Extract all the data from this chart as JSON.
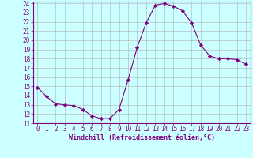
{
  "x": [
    0,
    1,
    2,
    3,
    4,
    5,
    6,
    7,
    8,
    9,
    10,
    11,
    12,
    13,
    14,
    15,
    16,
    17,
    18,
    19,
    20,
    21,
    22,
    23
  ],
  "y": [
    14.9,
    13.9,
    13.1,
    13.0,
    12.9,
    12.5,
    11.8,
    11.5,
    11.5,
    12.5,
    15.7,
    19.2,
    21.9,
    23.8,
    24.0,
    23.7,
    23.2,
    21.9,
    19.5,
    18.3,
    18.0,
    18.0,
    17.9,
    17.4
  ],
  "line_color": "#800080",
  "marker": "D",
  "marker_size": 2.2,
  "bg_color": "#ccffff",
  "grid_color": "#b0b0b0",
  "xlabel": "Windchill (Refroidissement éolien,°C)",
  "xlabel_color": "#800080",
  "tick_color": "#800080",
  "ylim": [
    11,
    24
  ],
  "xlim": [
    -0.5,
    23.5
  ],
  "yticks": [
    11,
    12,
    13,
    14,
    15,
    16,
    17,
    18,
    19,
    20,
    21,
    22,
    23,
    24
  ],
  "xticks": [
    0,
    1,
    2,
    3,
    4,
    5,
    6,
    7,
    8,
    9,
    10,
    11,
    12,
    13,
    14,
    15,
    16,
    17,
    18,
    19,
    20,
    21,
    22,
    23
  ],
  "tick_fontsize": 5.5,
  "xlabel_fontsize": 6.0
}
